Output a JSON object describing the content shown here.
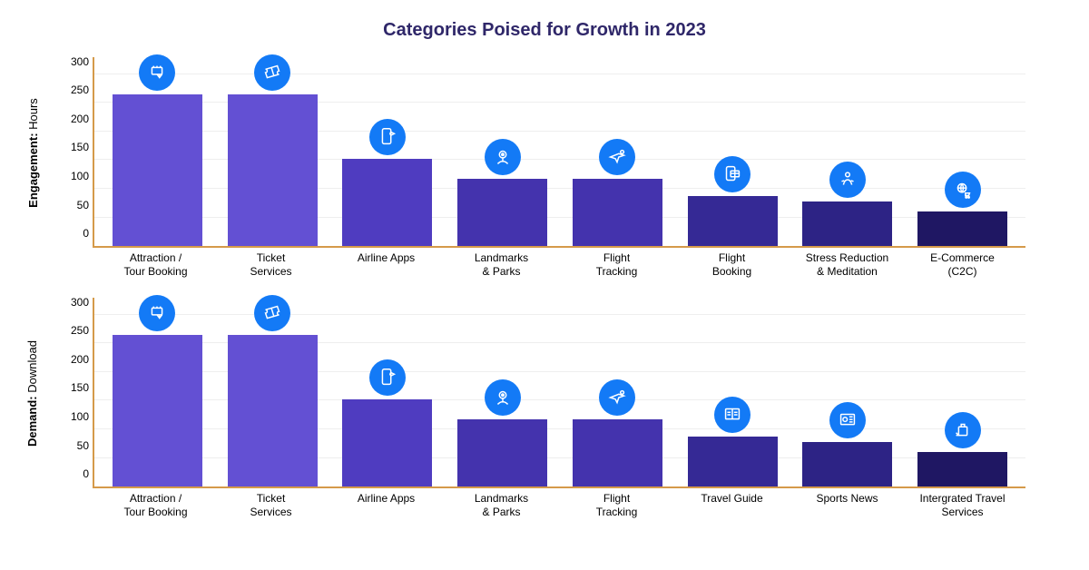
{
  "title": {
    "text": "Categories Poised for Growth in 2023",
    "color": "#2f2769",
    "fontsize": 20
  },
  "icon_badge_bg": "#137af6",
  "axis_color": "#d59a4a",
  "grid_color": "#eeeeee",
  "ymax": 330,
  "yticks": [
    0,
    50,
    100,
    150,
    200,
    250,
    300
  ],
  "charts": [
    {
      "ylabel_bold": "Engagement:",
      "ylabel_rest": " Hours",
      "bars": [
        {
          "label": "Attraction /\nTour Booking",
          "value": 265,
          "color": "#6350d3",
          "icon": "booking"
        },
        {
          "label": "Ticket\nServices",
          "value": 265,
          "color": "#6350d3",
          "icon": "ticket"
        },
        {
          "label": "Airline Apps",
          "value": 152,
          "color": "#4f3cc0",
          "icon": "phone-plane"
        },
        {
          "label": "Landmarks\n& Parks",
          "value": 117,
          "color": "#4433ad",
          "icon": "map-pin"
        },
        {
          "label": "Flight\nTracking",
          "value": 117,
          "color": "#4433ad",
          "icon": "plane-pin"
        },
        {
          "label": "Flight\nBooking",
          "value": 88,
          "color": "#352995",
          "icon": "phone-card"
        },
        {
          "label": "Stress Reduction\n& Meditation",
          "value": 78,
          "color": "#2d2385",
          "icon": "meditate"
        },
        {
          "label": "E-Commerce\n(C2C)",
          "value": 60,
          "color": "#1f1763",
          "icon": "globe-cart"
        }
      ]
    },
    {
      "ylabel_bold": "Demand:",
      "ylabel_rest": " Download",
      "bars": [
        {
          "label": "Attraction /\nTour Booking",
          "value": 265,
          "color": "#6350d3",
          "icon": "booking"
        },
        {
          "label": "Ticket\nServices",
          "value": 265,
          "color": "#6350d3",
          "icon": "ticket"
        },
        {
          "label": "Airline Apps",
          "value": 152,
          "color": "#4f3cc0",
          "icon": "phone-plane"
        },
        {
          "label": "Landmarks\n& Parks",
          "value": 117,
          "color": "#4433ad",
          "icon": "map-pin"
        },
        {
          "label": "Flight\nTracking",
          "value": 117,
          "color": "#4433ad",
          "icon": "plane-pin"
        },
        {
          "label": "Travel Guide",
          "value": 88,
          "color": "#352995",
          "icon": "guide"
        },
        {
          "label": "Sports News",
          "value": 78,
          "color": "#2d2385",
          "icon": "news"
        },
        {
          "label": "Intergrated Travel\nServices",
          "value": 60,
          "color": "#1f1763",
          "icon": "luggage"
        }
      ]
    }
  ]
}
